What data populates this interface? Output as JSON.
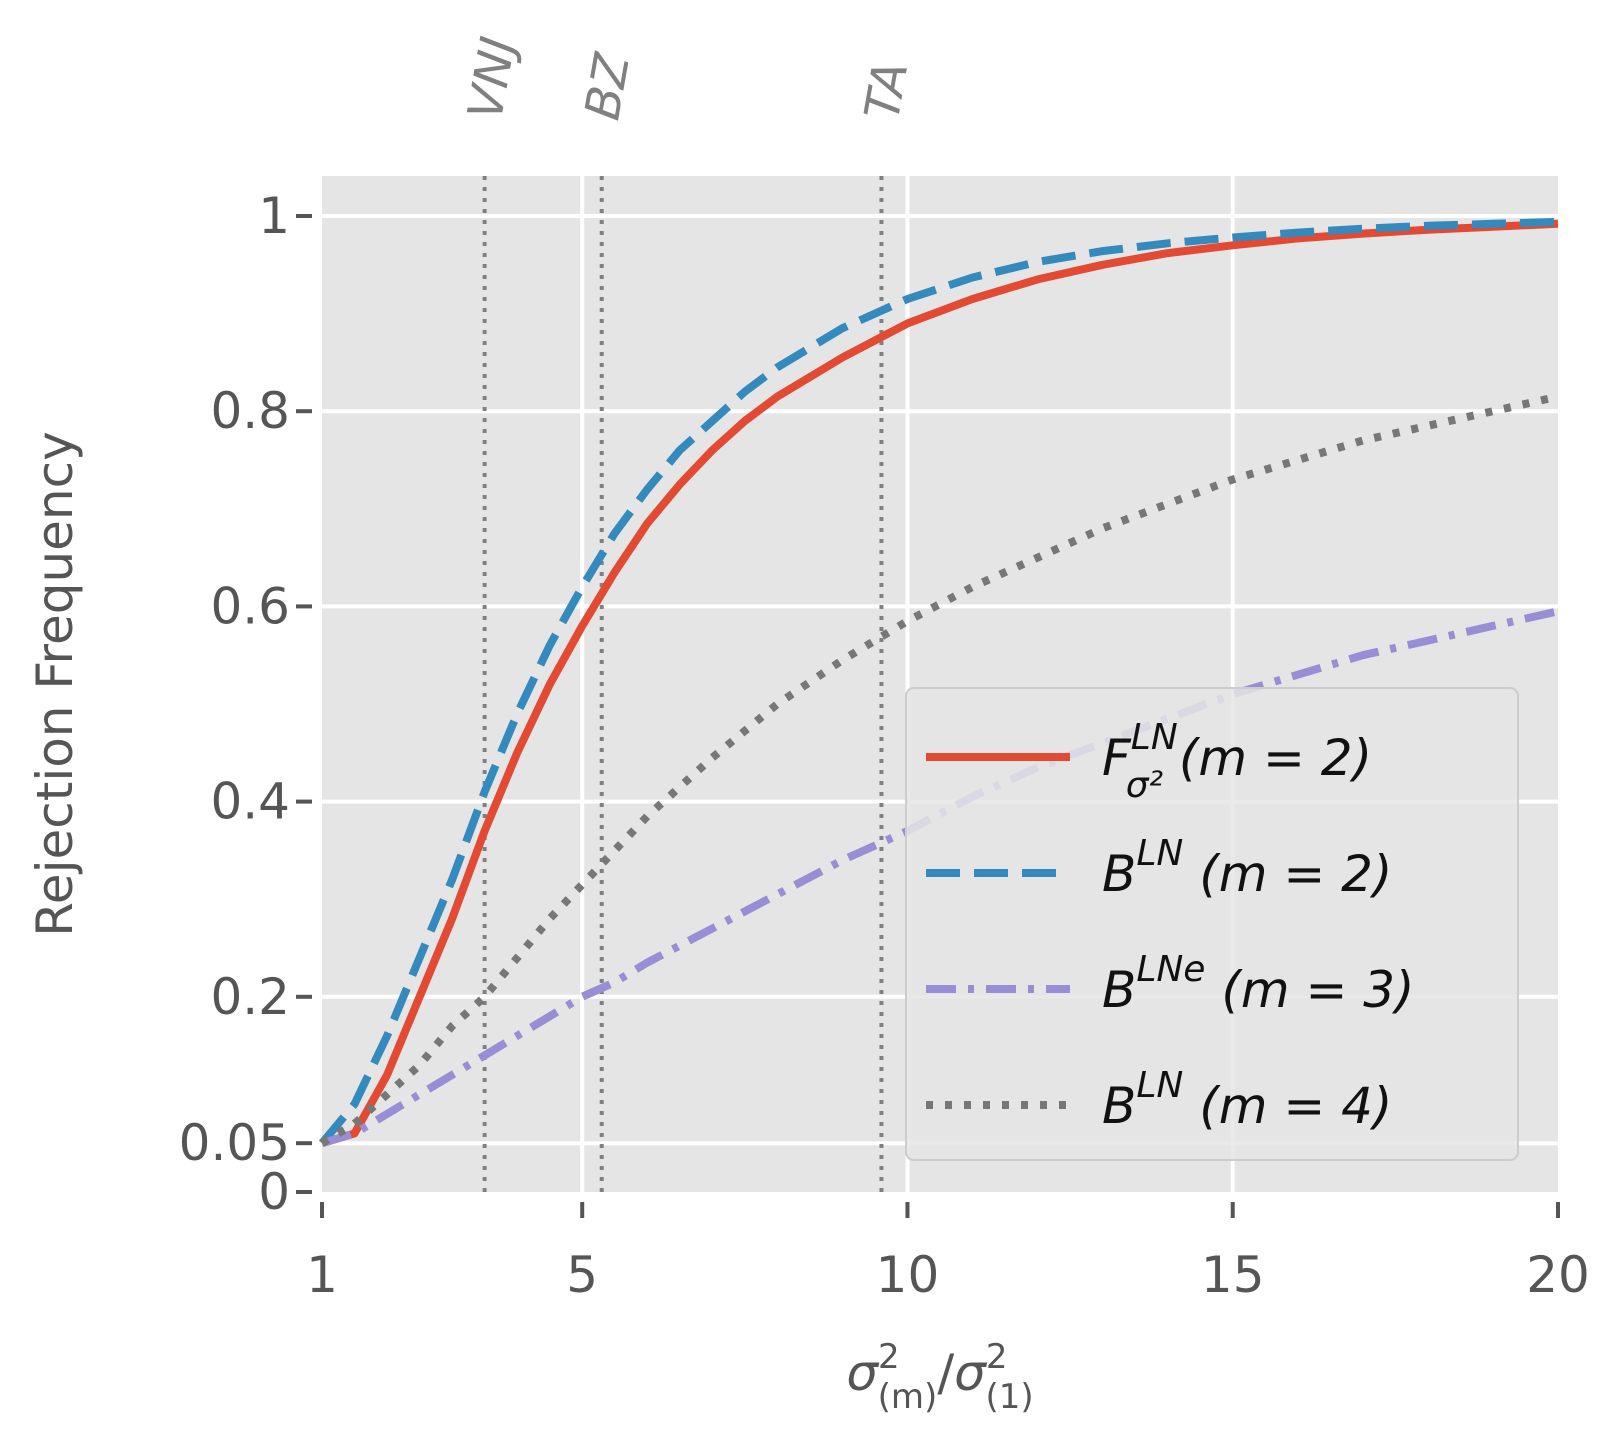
{
  "chart_data": {
    "type": "line",
    "xlabel_main": "σ",
    "xlabel_num_sub": "(m)",
    "xlabel_den_sub": "(1)",
    "xlabel_sup": "2",
    "xlabel_slash": "/",
    "ylabel": "Rejection Frequency",
    "xlim": [
      1,
      20
    ],
    "ylim": [
      0,
      1.0
    ],
    "xticks": [
      {
        "value": 1,
        "label": "1"
      },
      {
        "value": 5,
        "label": "5"
      },
      {
        "value": 10,
        "label": "10"
      },
      {
        "value": 15,
        "label": "15"
      },
      {
        "value": 20,
        "label": "20"
      }
    ],
    "yticks": [
      {
        "value": 0,
        "label": "0"
      },
      {
        "value": 0.05,
        "label": "0.05"
      },
      {
        "value": 0.2,
        "label": "0.2"
      },
      {
        "value": 0.4,
        "label": "0.4"
      },
      {
        "value": 0.6,
        "label": "0.6"
      },
      {
        "value": 0.8,
        "label": "0.8"
      },
      {
        "value": 1.0,
        "label": "1"
      }
    ],
    "vlines": [
      {
        "x": 3.5,
        "label": "VNJ"
      },
      {
        "x": 5.3,
        "label": "BZ"
      },
      {
        "x": 9.6,
        "label": "TA"
      }
    ],
    "series": [
      {
        "name": "F_σ²^LN (m = 2)",
        "legend_base": "F",
        "legend_sup": "LN",
        "legend_sub": "σ²",
        "legend_rest": " (m = 2)",
        "color": "#E24A33",
        "dash": "solid",
        "x": [
          1,
          1.5,
          2,
          2.5,
          3,
          3.5,
          4,
          4.5,
          5,
          5.5,
          6,
          6.5,
          7,
          7.5,
          8,
          9,
          10,
          11,
          12,
          13,
          14,
          15,
          16,
          17,
          18,
          19,
          20
        ],
        "y": [
          0.05,
          0.06,
          0.12,
          0.2,
          0.28,
          0.37,
          0.45,
          0.52,
          0.58,
          0.635,
          0.685,
          0.725,
          0.76,
          0.79,
          0.815,
          0.855,
          0.89,
          0.915,
          0.935,
          0.95,
          0.962,
          0.97,
          0.977,
          0.982,
          0.986,
          0.989,
          0.992
        ]
      },
      {
        "name": "B^LN (m = 2)",
        "legend_base": "B",
        "legend_sup": "LN",
        "legend_sub": "",
        "legend_rest": " (m = 2)",
        "color": "#348ABD",
        "dash": "dashed",
        "x": [
          1,
          1.5,
          2,
          2.5,
          3,
          3.5,
          4,
          4.5,
          5,
          5.5,
          6,
          6.5,
          7,
          7.5,
          8,
          9,
          10,
          11,
          12,
          13,
          14,
          15,
          16,
          17,
          18,
          19,
          20
        ],
        "y": [
          0.05,
          0.09,
          0.16,
          0.24,
          0.32,
          0.41,
          0.49,
          0.56,
          0.62,
          0.675,
          0.72,
          0.76,
          0.79,
          0.82,
          0.845,
          0.885,
          0.915,
          0.937,
          0.953,
          0.964,
          0.972,
          0.978,
          0.983,
          0.987,
          0.99,
          0.992,
          0.994
        ]
      },
      {
        "name": "B^LNe (m = 3)",
        "legend_base": "B",
        "legend_sup": "LNe",
        "legend_sub": "",
        "legend_rest": " (m = 3)",
        "color": "#988ED5",
        "dash": "dashdot",
        "x": [
          1,
          1.5,
          2,
          2.5,
          3,
          3.5,
          4,
          4.5,
          5,
          5.5,
          6,
          7,
          8,
          9,
          10,
          11,
          12,
          13,
          14,
          15,
          16,
          17,
          18,
          19,
          20
        ],
        "y": [
          0.05,
          0.06,
          0.08,
          0.1,
          0.12,
          0.14,
          0.16,
          0.18,
          0.2,
          0.215,
          0.235,
          0.27,
          0.305,
          0.34,
          0.37,
          0.405,
          0.435,
          0.46,
          0.485,
          0.51,
          0.53,
          0.55,
          0.565,
          0.58,
          0.595
        ]
      },
      {
        "name": "B^LN (m = 4)",
        "legend_base": "B",
        "legend_sup": "LN",
        "legend_sub": "",
        "legend_rest": " (m = 4)",
        "color": "#777777",
        "dash": "dotted",
        "x": [
          1,
          1.5,
          2,
          2.5,
          3,
          3.5,
          4,
          4.5,
          5,
          5.5,
          6,
          7,
          8,
          9,
          10,
          11,
          12,
          13,
          14,
          15,
          16,
          17,
          18,
          19,
          20
        ],
        "y": [
          0.05,
          0.07,
          0.1,
          0.13,
          0.17,
          0.2,
          0.24,
          0.28,
          0.315,
          0.35,
          0.385,
          0.445,
          0.5,
          0.545,
          0.585,
          0.62,
          0.65,
          0.68,
          0.705,
          0.73,
          0.75,
          0.77,
          0.785,
          0.8,
          0.815
        ]
      }
    ],
    "legend_position": "lower-right"
  }
}
